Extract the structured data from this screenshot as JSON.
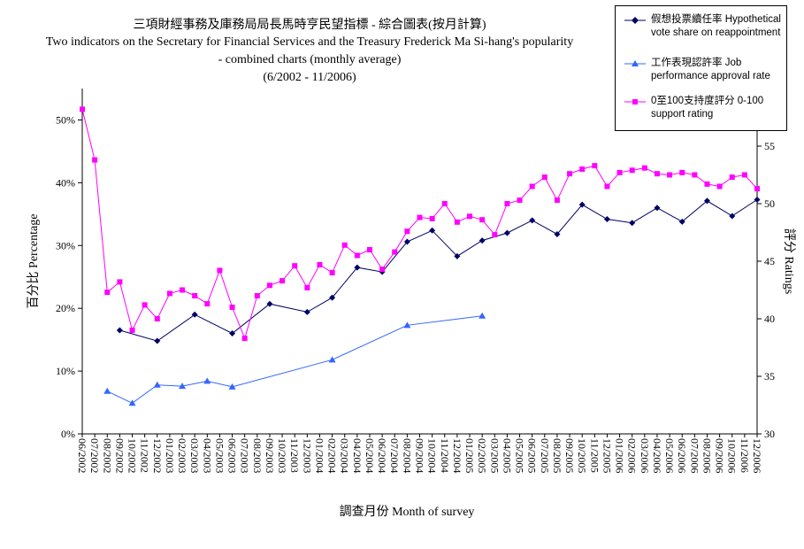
{
  "chart_data": {
    "type": "line",
    "title": "三項財經事務及庫務局局長馬時亨民望指標 - 綜合圖表(按月計算)",
    "subtitle": [
      "Two indicators on the Secretary for Financial Services and the Treasury Frederick Ma Si-hang's popularity",
      "- combined charts (monthly average)",
      "(6/2002 - 11/2006)"
    ],
    "xlabel": "調查月份  Month of survey",
    "ylabel_left": "百分比  Percentage",
    "ylabel_right": "評分  Ratings",
    "y_left_ticks": [
      "0%",
      "10%",
      "20%",
      "30%",
      "40%",
      "50%"
    ],
    "y_left_lim": [
      0,
      55
    ],
    "y_right_ticks": [
      "30",
      "35",
      "40",
      "45",
      "50",
      "55"
    ],
    "y_right_lim": [
      30,
      60
    ],
    "categories": [
      "06/2002",
      "07/2002",
      "08/2002",
      "09/2002",
      "10/2002",
      "11/2002",
      "12/2002",
      "01/2003",
      "02/2003",
      "03/2003",
      "04/2003",
      "05/2003",
      "06/2003",
      "07/2003",
      "08/2003",
      "09/2003",
      "10/2003",
      "11/2003",
      "12/2003",
      "01/2004",
      "02/2004",
      "03/2004",
      "04/2004",
      "05/2004",
      "06/2004",
      "07/2004",
      "08/2004",
      "09/2004",
      "10/2004",
      "11/2004",
      "12/2004",
      "01/2005",
      "02/2005",
      "03/2005",
      "04/2005",
      "05/2005",
      "06/2005",
      "07/2005",
      "08/2005",
      "09/2005",
      "10/2005",
      "11/2005",
      "12/2005",
      "01/2006",
      "02/2006",
      "03/2006",
      "04/2006",
      "05/2006",
      "06/2006",
      "07/2006",
      "08/2006",
      "09/2006",
      "10/2006",
      "11/2006",
      "12/2006"
    ],
    "series": [
      {
        "name": "假想投票續任率 Hypothetical vote share on reappointment",
        "axis": "left",
        "color": "#000066",
        "marker": "diamond",
        "points": [
          [
            3,
            16.5
          ],
          [
            6,
            14.8
          ],
          [
            9,
            19.0
          ],
          [
            12,
            16.0
          ],
          [
            15,
            20.7
          ],
          [
            18,
            19.4
          ],
          [
            20,
            21.7
          ],
          [
            22,
            26.5
          ],
          [
            24,
            25.8
          ],
          [
            26,
            30.6
          ],
          [
            28,
            32.4
          ],
          [
            30,
            28.3
          ],
          [
            32,
            30.8
          ],
          [
            34,
            32.0
          ],
          [
            36,
            34.0
          ],
          [
            38,
            31.8
          ],
          [
            40,
            36.5
          ],
          [
            42,
            34.2
          ],
          [
            44,
            33.6
          ],
          [
            46,
            36.0
          ],
          [
            48,
            33.8
          ],
          [
            50,
            37.1
          ],
          [
            52,
            34.7
          ],
          [
            54,
            37.3
          ]
        ]
      },
      {
        "name": "工作表現認許率 Job performance approval rate",
        "axis": "left",
        "color": "#3366ff",
        "marker": "triangle",
        "points": [
          [
            2,
            6.8
          ],
          [
            4,
            4.9
          ],
          [
            6,
            7.8
          ],
          [
            8,
            7.6
          ],
          [
            10,
            8.4
          ],
          [
            12,
            7.5
          ],
          [
            20,
            11.8
          ],
          [
            26,
            17.3
          ],
          [
            32,
            18.8
          ]
        ]
      },
      {
        "name": "0至100支持度評分 0-100 support rating",
        "axis": "right",
        "color": "#ff00ff",
        "marker": "square",
        "points": [
          [
            0,
            58.2
          ],
          [
            1,
            53.8
          ],
          [
            2,
            42.3
          ],
          [
            3,
            43.2
          ],
          [
            4,
            39.0
          ],
          [
            5,
            41.2
          ],
          [
            6,
            40.0
          ],
          [
            7,
            42.2
          ],
          [
            8,
            42.5
          ],
          [
            9,
            42.0
          ],
          [
            10,
            41.3
          ],
          [
            11,
            44.2
          ],
          [
            12,
            41.0
          ],
          [
            13,
            38.3
          ],
          [
            14,
            42.0
          ],
          [
            15,
            42.9
          ],
          [
            16,
            43.3
          ],
          [
            17,
            44.6
          ],
          [
            18,
            42.7
          ],
          [
            19,
            44.7
          ],
          [
            20,
            44.0
          ],
          [
            21,
            46.4
          ],
          [
            22,
            45.5
          ],
          [
            23,
            46.0
          ],
          [
            24,
            44.3
          ],
          [
            25,
            45.8
          ],
          [
            26,
            47.6
          ],
          [
            27,
            48.8
          ],
          [
            28,
            48.7
          ],
          [
            29,
            50.0
          ],
          [
            30,
            48.4
          ],
          [
            31,
            48.9
          ],
          [
            32,
            48.6
          ],
          [
            33,
            47.3
          ],
          [
            34,
            50.0
          ],
          [
            35,
            50.3
          ],
          [
            36,
            51.5
          ],
          [
            37,
            52.3
          ],
          [
            38,
            50.3
          ],
          [
            39,
            52.6
          ],
          [
            40,
            53.0
          ],
          [
            41,
            53.3
          ],
          [
            42,
            51.5
          ],
          [
            43,
            52.7
          ],
          [
            44,
            52.9
          ],
          [
            45,
            53.1
          ],
          [
            46,
            52.6
          ],
          [
            47,
            52.5
          ],
          [
            48,
            52.7
          ],
          [
            49,
            52.5
          ],
          [
            50,
            51.7
          ],
          [
            51,
            51.5
          ],
          [
            52,
            52.3
          ],
          [
            53,
            52.5
          ],
          [
            54,
            51.3
          ]
        ]
      }
    ]
  }
}
